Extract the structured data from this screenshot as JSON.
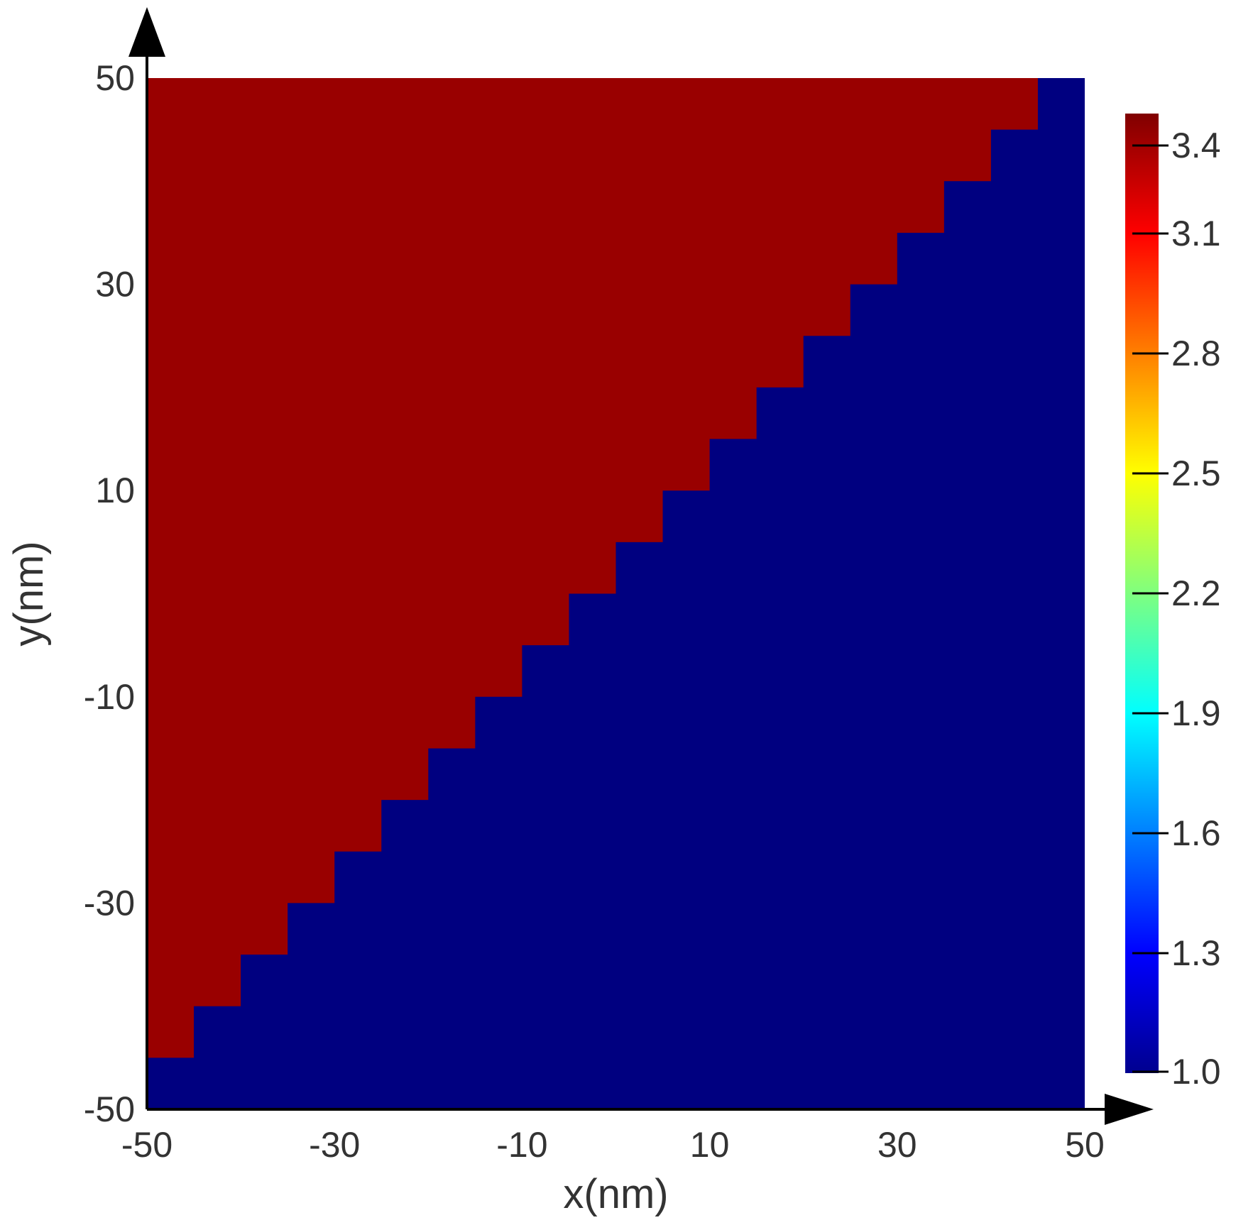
{
  "chart_data": {
    "type": "heatmap",
    "title": "",
    "xlabel": "x(nm)",
    "ylabel": "y(nm)",
    "xlim": [
      -50,
      50
    ],
    "ylim": [
      -50,
      50
    ],
    "x_ticks": [
      -50,
      -30,
      -10,
      10,
      30,
      50
    ],
    "y_ticks": [
      -50,
      -30,
      -10,
      10,
      30,
      50
    ],
    "x_tick_labels": [
      "-50",
      "-30",
      "-10",
      "10",
      "30",
      "50"
    ],
    "y_tick_labels": [
      "-50",
      "-30",
      "-10",
      "10",
      "30",
      "50"
    ],
    "grid": false,
    "colormap": "jet",
    "colorbar": {
      "range": [
        1.0,
        3.4
      ],
      "ticks": [
        1.0,
        1.3,
        1.6,
        1.9,
        2.2,
        2.5,
        2.8,
        3.1,
        3.4
      ],
      "tick_labels": [
        "1.0",
        "1.3",
        "1.6",
        "1.9",
        "2.2",
        "2.5",
        "2.8",
        "3.1",
        "3.4"
      ],
      "placement": "right"
    },
    "regions": [
      {
        "description": "upper-left of staircase boundary y ≈ x",
        "value": 3.4,
        "color": "#990000"
      },
      {
        "description": "lower-right of staircase boundary y ≈ x",
        "value": 1.0,
        "color": "#000080"
      }
    ],
    "boundary": {
      "shape": "staircase along diagonal y = x",
      "step_nm": 5,
      "from": [
        -50,
        -50
      ],
      "to": [
        50,
        50
      ]
    }
  }
}
